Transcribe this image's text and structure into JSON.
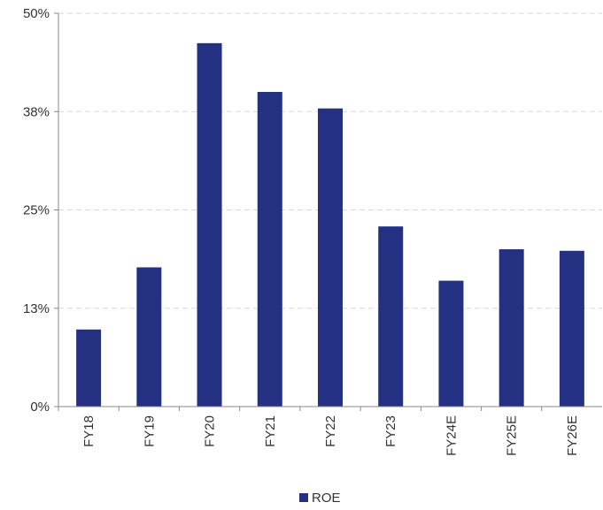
{
  "chart_data": {
    "type": "bar",
    "categories": [
      "FY18",
      "FY19",
      "FY20",
      "FY21",
      "FY22",
      "FY23",
      "FY24E",
      "FY25E",
      "FY26E"
    ],
    "series": [
      {
        "name": "ROE",
        "values": [
          9.8,
          17.7,
          46.2,
          40.0,
          37.9,
          22.9,
          16.0,
          20.0,
          19.8
        ],
        "color": "#243183"
      }
    ],
    "y_ticks": [
      "0%",
      "13%",
      "25%",
      "38%",
      "50%"
    ],
    "ylim": [
      0,
      50
    ],
    "grid": true,
    "legend_position": "bottom"
  }
}
